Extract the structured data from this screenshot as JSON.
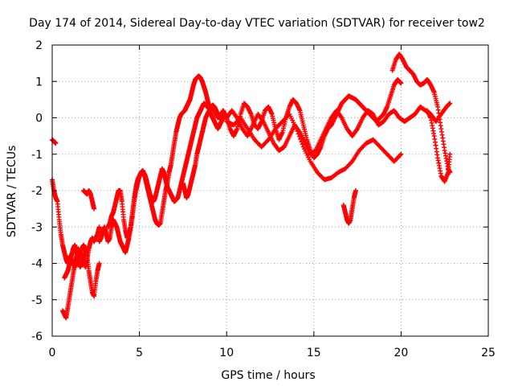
{
  "chart_data": {
    "type": "scatter",
    "title": "Day 174 of 2014, Sidereal Day-to-day VTEC variation (SDTVAR) for receiver tow2",
    "xlabel": "GPS time / hours",
    "ylabel": "SDTVAR / TECUs",
    "xlim": [
      0,
      25
    ],
    "ylim": [
      -6,
      2
    ],
    "xticks": [
      0,
      5,
      10,
      15,
      20,
      25
    ],
    "yticks": [
      -6,
      -5,
      -4,
      -3,
      -2,
      -1,
      0,
      1,
      2
    ],
    "grid": true,
    "legend": "none",
    "marker": "+",
    "colors": {
      "series": "#ff0000",
      "grid": "#a0a0a0",
      "axes": "#000000"
    },
    "series": [
      {
        "x": [
          0.0,
          0.1,
          0.2
        ],
        "y": [
          -0.6,
          -0.65,
          -0.7
        ]
      },
      {
        "x": [
          0.0,
          0.1,
          0.2,
          0.3,
          0.4,
          0.5,
          0.6,
          0.7,
          0.8,
          0.9,
          1.0,
          1.1,
          1.2,
          1.3,
          1.4,
          1.5,
          1.6,
          1.7,
          1.8,
          1.9,
          2.0,
          2.1,
          2.2,
          2.3,
          2.4,
          2.5,
          2.6,
          2.7
        ],
        "y": [
          -1.7,
          -2.0,
          -2.2,
          -2.3,
          -2.8,
          -3.2,
          -3.5,
          -3.7,
          -3.9,
          -4.0,
          -3.8,
          -3.9,
          -4.0,
          -4.1,
          -3.9,
          -3.8,
          -3.7,
          -3.6,
          -3.5,
          -3.6,
          -3.8,
          -4.2,
          -4.5,
          -4.8,
          -4.9,
          -4.5,
          -4.2,
          -4.0
        ]
      },
      {
        "x": [
          0.6,
          0.7,
          0.8,
          0.9,
          1.0,
          1.1,
          1.2,
          1.3,
          1.4,
          1.5,
          1.6,
          1.7,
          1.8,
          1.9,
          2.0,
          2.1,
          2.2,
          2.3,
          2.4,
          2.5,
          2.6,
          2.7
        ],
        "y": [
          -5.3,
          -5.4,
          -5.5,
          -5.2,
          -4.9,
          -4.6,
          -4.3,
          -4.0,
          -3.8,
          -3.6,
          -3.7,
          -3.8,
          -3.9,
          -4.1,
          -3.9,
          -3.6,
          -3.4,
          -3.3,
          -3.4,
          -3.3,
          -3.2,
          -3.0
        ]
      },
      {
        "x": [
          0.7,
          0.8,
          0.9,
          1.0,
          1.1,
          1.2,
          1.3,
          1.4,
          1.5,
          1.6,
          1.7,
          1.8,
          1.9,
          2.0
        ],
        "y": [
          -4.4,
          -4.3,
          -4.2,
          -4.0,
          -3.8,
          -3.6,
          -3.5,
          -3.7,
          -3.9,
          -4.1,
          -4.0,
          -3.8,
          -3.7,
          -3.6
        ]
      },
      {
        "x": [
          1.8,
          1.9,
          2.0,
          2.1,
          2.2,
          2.3,
          2.4
        ],
        "y": [
          -2.0,
          -2.05,
          -2.1,
          -2.0,
          -2.1,
          -2.3,
          -2.5
        ]
      },
      {
        "x": [
          2.7,
          2.8,
          2.9,
          3.0,
          3.1,
          3.2,
          3.3,
          3.4,
          3.5,
          3.6,
          3.7,
          3.8,
          3.9,
          4.0,
          4.1,
          4.2,
          4.3,
          4.4,
          4.5,
          4.6,
          4.7,
          4.8,
          4.9,
          5.0,
          5.1,
          5.2,
          5.3,
          5.4,
          5.5,
          5.6,
          5.7,
          5.8,
          5.9,
          6.0,
          6.1,
          6.2,
          6.3,
          6.4,
          6.5,
          6.6,
          6.7,
          6.8,
          6.9,
          7.0,
          7.1,
          7.2,
          7.3,
          7.4,
          7.5,
          7.6,
          7.7,
          7.8,
          7.9,
          8.0,
          8.1,
          8.2,
          8.3,
          8.4,
          8.5,
          8.6,
          8.7,
          8.8,
          8.9,
          9.0,
          9.1,
          9.2,
          9.3,
          9.4,
          9.5,
          9.6,
          9.7,
          9.8,
          9.9,
          10.0
        ],
        "y": [
          -3.4,
          -3.3,
          -3.1,
          -3.0,
          -3.2,
          -3.4,
          -3.3,
          -3.0,
          -2.8,
          -2.9,
          -3.0,
          -3.2,
          -3.4,
          -3.5,
          -3.6,
          -3.7,
          -3.5,
          -3.3,
          -3.0,
          -2.6,
          -2.2,
          -1.9,
          -1.7,
          -1.6,
          -1.5,
          -1.45,
          -1.6,
          -1.8,
          -2.0,
          -2.2,
          -2.4,
          -2.6,
          -2.8,
          -2.9,
          -2.95,
          -2.9,
          -2.6,
          -2.3,
          -2.0,
          -1.8,
          -1.5,
          -1.3,
          -1.0,
          -0.7,
          -0.4,
          -0.2,
          0.0,
          0.1,
          0.15,
          0.2,
          0.3,
          0.4,
          0.5,
          0.7,
          0.9,
          1.05,
          1.1,
          1.15,
          1.1,
          1.0,
          0.85,
          0.7,
          0.5,
          0.3,
          0.1,
          0.0,
          -0.1,
          -0.2,
          -0.3,
          -0.2,
          -0.1,
          0.0,
          0.1,
          0.0
        ]
      },
      {
        "x": [
          3.2,
          3.3,
          3.4,
          3.5,
          3.6,
          3.7,
          3.8,
          3.9,
          4.0,
          4.1,
          4.2,
          4.3,
          4.4,
          4.5,
          4.6,
          4.7,
          4.8,
          4.9,
          5.0,
          5.1,
          5.2,
          5.3,
          5.4,
          5.5,
          5.6,
          5.7,
          5.8,
          5.9,
          6.0,
          6.1,
          6.2,
          6.3,
          6.4,
          6.5,
          6.6,
          6.7,
          6.8,
          6.9,
          7.0,
          7.1,
          7.2,
          7.3,
          7.4,
          7.5,
          7.6,
          7.7,
          7.8,
          7.9,
          8.0,
          8.1,
          8.2,
          8.3,
          8.4,
          8.5,
          8.6,
          8.7,
          8.8,
          8.9,
          9.0,
          9.1,
          9.2,
          9.3,
          9.4,
          9.5,
          9.6,
          9.7
        ],
        "y": [
          -3.0,
          -2.9,
          -2.7,
          -2.6,
          -2.4,
          -2.2,
          -2.0,
          -2.0,
          -2.3,
          -2.8,
          -3.1,
          -3.3,
          -3.2,
          -3.0,
          -2.7,
          -2.3,
          -2.0,
          -1.8,
          -1.6,
          -1.5,
          -1.5,
          -1.55,
          -1.7,
          -1.9,
          -2.1,
          -2.2,
          -2.3,
          -2.2,
          -2.0,
          -1.8,
          -1.6,
          -1.4,
          -1.5,
          -1.7,
          -1.9,
          -2.0,
          -2.1,
          -2.2,
          -2.3,
          -2.25,
          -2.2,
          -2.0,
          -1.8,
          -1.6,
          -1.4,
          -1.2,
          -1.0,
          -0.8,
          -0.6,
          -0.4,
          -0.2,
          0.0,
          0.1,
          0.2,
          0.3,
          0.4,
          0.35,
          0.3,
          0.25,
          0.3,
          0.35,
          0.3,
          0.2,
          0.1,
          0.0,
          0.1
        ]
      },
      {
        "x": [
          7.5,
          7.6,
          7.7,
          7.8,
          7.9,
          8.0,
          8.1,
          8.2,
          8.3,
          8.4,
          8.5,
          8.6,
          8.7,
          8.8,
          8.9,
          9.0,
          9.1,
          9.2,
          9.3,
          9.4,
          9.5,
          9.6,
          9.7,
          9.8,
          9.9,
          10.0
        ],
        "y": [
          -1.8,
          -2.0,
          -2.2,
          -2.1,
          -1.9,
          -1.7,
          -1.5,
          -1.3,
          -1.0,
          -0.8,
          -0.6,
          -0.4,
          -0.2,
          0.0,
          0.1,
          0.2,
          0.25,
          0.3,
          0.2,
          0.1,
          0.0,
          0.05,
          0.1,
          0.2,
          0.1,
          0.0
        ]
      },
      {
        "x": [
          10.0,
          10.2,
          10.4,
          10.6,
          10.8,
          11.0,
          11.2,
          11.4,
          11.6,
          11.8,
          12.0,
          12.2,
          12.4,
          12.6,
          12.8,
          13.0,
          13.2,
          13.4,
          13.6,
          13.8,
          14.0,
          14.2,
          14.4,
          14.6,
          14.8,
          15.0,
          15.2,
          15.4,
          15.6,
          15.8,
          16.0,
          16.2,
          16.4,
          16.6,
          16.8,
          17.0,
          17.2,
          17.4,
          17.6,
          17.8,
          18.0,
          18.2,
          18.4,
          18.6,
          18.8,
          19.0,
          19.2,
          19.4,
          19.6,
          19.8,
          20.0
        ],
        "y": [
          0.0,
          -0.3,
          -0.5,
          -0.3,
          0.1,
          0.4,
          0.3,
          0.1,
          -0.2,
          -0.3,
          -0.1,
          0.2,
          0.3,
          0.1,
          -0.3,
          -0.6,
          -0.4,
          0.0,
          0.3,
          0.5,
          0.4,
          0.2,
          -0.2,
          -0.6,
          -0.9,
          -1.1,
          -1.0,
          -0.8,
          -0.5,
          -0.3,
          -0.2,
          0.0,
          0.2,
          0.4,
          0.5,
          0.6,
          0.55,
          0.5,
          0.4,
          0.3,
          0.2,
          0.1,
          0.0,
          -0.1,
          0.0,
          0.1,
          0.3,
          0.6,
          0.9,
          1.05,
          0.95
        ]
      },
      {
        "x": [
          10.0,
          10.3,
          10.6,
          10.9,
          11.2,
          11.5,
          11.8,
          12.1,
          12.4,
          12.7,
          13.0,
          13.3,
          13.6,
          13.9,
          14.2,
          14.5,
          14.8,
          15.1,
          15.4,
          15.7,
          16.0,
          16.3,
          16.6,
          16.9,
          17.2,
          17.5,
          17.8,
          18.1,
          18.4,
          18.7,
          19.0,
          19.3,
          19.6,
          19.9,
          20.2,
          20.5,
          20.8,
          21.1,
          21.4,
          21.7,
          22.0,
          22.3,
          22.6,
          22.8
        ],
        "y": [
          0.0,
          0.2,
          0.0,
          -0.3,
          -0.5,
          -0.2,
          0.1,
          -0.1,
          -0.4,
          -0.7,
          -0.9,
          -0.8,
          -0.5,
          -0.2,
          -0.4,
          -0.7,
          -1.0,
          -0.9,
          -0.6,
          -0.3,
          0.0,
          0.2,
          0.0,
          -0.3,
          -0.5,
          -0.3,
          0.0,
          0.2,
          0.1,
          -0.2,
          -0.1,
          0.1,
          0.2,
          0.0,
          -0.1,
          0.0,
          0.1,
          0.3,
          0.2,
          0.1,
          -0.1,
          0.1,
          0.3,
          0.4
        ]
      },
      {
        "x": [
          10.0,
          10.4,
          10.8,
          11.2,
          11.6,
          12.0,
          12.4,
          12.8,
          13.2,
          13.6,
          14.0,
          14.4,
          14.8,
          15.2,
          15.6,
          16.0,
          16.4,
          16.8,
          17.2,
          17.6,
          18.0,
          18.4,
          18.8,
          19.2,
          19.6,
          20.0
        ],
        "y": [
          -0.1,
          -0.2,
          0.0,
          -0.3,
          -0.6,
          -0.8,
          -0.6,
          -0.3,
          -0.1,
          0.1,
          -0.3,
          -0.8,
          -1.2,
          -1.5,
          -1.7,
          -1.65,
          -1.5,
          -1.4,
          -1.2,
          -0.9,
          -0.7,
          -0.6,
          -0.8,
          -1.0,
          -1.2,
          -1.0
        ]
      },
      {
        "x": [
          16.7,
          16.8,
          16.9,
          17.0,
          17.1,
          17.2,
          17.3,
          17.4
        ],
        "y": [
          -2.4,
          -2.6,
          -2.8,
          -2.9,
          -2.8,
          -2.5,
          -2.2,
          -2.0
        ]
      },
      {
        "x": [
          19.5,
          19.7,
          19.9,
          20.1,
          20.3,
          20.5,
          20.7,
          20.9,
          21.1,
          21.3,
          21.5,
          21.7,
          21.9,
          22.1,
          22.3,
          22.5,
          22.7,
          22.8
        ],
        "y": [
          1.3,
          1.6,
          1.75,
          1.6,
          1.4,
          1.3,
          1.2,
          1.0,
          0.9,
          0.95,
          1.05,
          0.9,
          0.7,
          0.3,
          -0.3,
          -0.9,
          -1.4,
          -1.5
        ]
      },
      {
        "x": [
          21.5,
          21.7,
          21.9,
          22.1,
          22.3,
          22.5,
          22.7,
          22.8
        ],
        "y": [
          0.2,
          0.0,
          -0.5,
          -1.1,
          -1.6,
          -1.75,
          -1.5,
          -1.0
        ]
      }
    ]
  }
}
